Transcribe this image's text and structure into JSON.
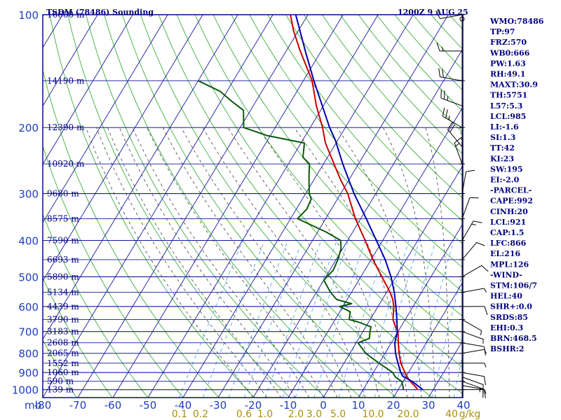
{
  "header": {
    "left_title": "TSDM (78486) Sounding",
    "right_title": "1200Z  9 AUG 25"
  },
  "colors": {
    "frame": "#0a0a8c",
    "isobar": "#1818a0",
    "isotherm": "#1818a0",
    "dry_adiabat": "#26a626",
    "moist_adiabat": "#444444",
    "mixing_ratio": "#3aa0e0",
    "temperature": "#cc0000",
    "dewpoint": "#0a5a0a",
    "parcel": "#0000b0",
    "axis_text": "#1c3fbf",
    "index_text": "#000080",
    "w_text": "#a8900a",
    "wind": "#000000"
  },
  "chart_data": {
    "type": "skew-t",
    "pressure_axis_label": "mb",
    "pressure_ticks": [
      100,
      200,
      300,
      400,
      500,
      600,
      700,
      800,
      900,
      1000
    ],
    "temperature_axis_unit": "",
    "temperature_ticks": [
      -80,
      -70,
      -60,
      -50,
      -40,
      -30,
      -20,
      -10,
      0,
      10,
      20,
      30,
      40
    ],
    "temperature_range": [
      -80,
      40
    ],
    "pressure_range": [
      100,
      1050
    ],
    "mixing_ratio_axis_label": "g/kg",
    "mixing_ratio_ticks": [
      "0.1",
      "0.2",
      "0.6",
      "1.0",
      "2.0",
      "3.0",
      "5.0",
      "10.0",
      "20.0",
      "40"
    ],
    "height_labels": [
      {
        "p": 100,
        "text": "16600 m"
      },
      {
        "p": 150,
        "text": "14190 m"
      },
      {
        "p": 200,
        "text": "12390 m"
      },
      {
        "p": 250,
        "text": "10920 m"
      },
      {
        "p": 300,
        "text": "9680 m"
      },
      {
        "p": 350,
        "text": "8575 m"
      },
      {
        "p": 400,
        "text": "7590 m"
      },
      {
        "p": 450,
        "text": "6693 m"
      },
      {
        "p": 500,
        "text": "5890 m"
      },
      {
        "p": 550,
        "text": "5134 m"
      },
      {
        "p": 600,
        "text": "4439 m"
      },
      {
        "p": 650,
        "text": "3790 m"
      },
      {
        "p": 700,
        "text": "3183 m"
      },
      {
        "p": 750,
        "text": "2608 m"
      },
      {
        "p": 800,
        "text": "2065 m"
      },
      {
        "p": 850,
        "text": "1552 m"
      },
      {
        "p": 900,
        "text": "1060 m"
      },
      {
        "p": 950,
        "text": "590 m"
      },
      {
        "p": 1000,
        "text": "139 m"
      }
    ],
    "series": [
      {
        "id": "temperature",
        "points": [
          [
            1000,
            25.5
          ],
          [
            990,
            25.0
          ],
          [
            950,
            22.0
          ],
          [
            925,
            20.4
          ],
          [
            900,
            19.0
          ],
          [
            850,
            16.2
          ],
          [
            800,
            14.0
          ],
          [
            750,
            12.0
          ],
          [
            700,
            10.0
          ],
          [
            680,
            8.5
          ],
          [
            650,
            6.5
          ],
          [
            600,
            4.5
          ],
          [
            575,
            3.0
          ],
          [
            550,
            1.0
          ],
          [
            500,
            -4.0
          ],
          [
            450,
            -9.5
          ],
          [
            400,
            -15.0
          ],
          [
            350,
            -21.5
          ],
          [
            300,
            -28.0
          ],
          [
            275,
            -32.5
          ],
          [
            250,
            -37.0
          ],
          [
            220,
            -43.0
          ],
          [
            200,
            -46.5
          ],
          [
            175,
            -52.0
          ],
          [
            150,
            -57.5
          ],
          [
            125,
            -66.0
          ],
          [
            110,
            -71.5
          ],
          [
            100,
            -75.0
          ]
        ]
      },
      {
        "id": "dewpoint",
        "points": [
          [
            1000,
            21.5
          ],
          [
            985,
            21.0
          ],
          [
            960,
            20.0
          ],
          [
            950,
            19.5
          ],
          [
            925,
            17.0
          ],
          [
            900,
            15.5
          ],
          [
            850,
            10.0
          ],
          [
            800,
            4.5
          ],
          [
            750,
            0.5
          ],
          [
            730,
            3.0
          ],
          [
            700,
            2.0
          ],
          [
            680,
            1.5
          ],
          [
            660,
            -3.0
          ],
          [
            650,
            -6.0
          ],
          [
            620,
            -7.0
          ],
          [
            600,
            -11.0
          ],
          [
            590,
            -8.0
          ],
          [
            575,
            -13.0
          ],
          [
            550,
            -16.0
          ],
          [
            520,
            -19.0
          ],
          [
            510,
            -20.0
          ],
          [
            480,
            -19.0
          ],
          [
            450,
            -19.5
          ],
          [
            420,
            -20.5
          ],
          [
            400,
            -22.0
          ],
          [
            380,
            -27.5
          ],
          [
            350,
            -38.0
          ],
          [
            330,
            -37.0
          ],
          [
            310,
            -37.5
          ],
          [
            300,
            -39.0
          ],
          [
            270,
            -42.0
          ],
          [
            250,
            -44.0
          ],
          [
            240,
            -47.0
          ],
          [
            220,
            -49.0
          ],
          [
            210,
            -61.0
          ],
          [
            200,
            -69.0
          ],
          [
            180,
            -72.0
          ],
          [
            170,
            -77.0
          ],
          [
            160,
            -82.0
          ],
          [
            150,
            -90.0
          ]
        ]
      },
      {
        "id": "parcel",
        "points": [
          [
            1000,
            27.0
          ],
          [
            950,
            22.5
          ],
          [
            921,
            19.0
          ],
          [
            900,
            17.8
          ],
          [
            850,
            15.4
          ],
          [
            800,
            13.0
          ],
          [
            750,
            11.0
          ],
          [
            700,
            9.8
          ],
          [
            650,
            7.6
          ],
          [
            600,
            5.1
          ],
          [
            550,
            2.2
          ],
          [
            500,
            -1.4
          ],
          [
            450,
            -6.0
          ],
          [
            400,
            -11.8
          ],
          [
            350,
            -18.4
          ],
          [
            300,
            -26.2
          ],
          [
            250,
            -34.5
          ],
          [
            216,
            -40.7
          ],
          [
            200,
            -44.5
          ],
          [
            150,
            -57.0
          ],
          [
            126,
            -64.2
          ],
          [
            100,
            -73.5
          ]
        ]
      }
    ]
  },
  "indices": [
    "WMO:78486",
    "TP:97",
    "FRZ:570",
    "WB0:666",
    "PW:1.63",
    "RH:49.1",
    "MAXT:30.9",
    "TH:5751",
    "L57:5.3",
    "LCL:985",
    "LI:-1.6",
    "SI:1.3",
    "TT:42",
    "KI:23",
    "SW:195",
    "EI:-2.0",
    "-PARCEL-",
    "CAPE:992",
    "CINH:20",
    "LCL:921",
    "CAP:1.5",
    "LFC:866",
    "EL:216",
    "MPL:126",
    "-WIND-",
    "STM:106/7",
    "HEL:40",
    "SHR+:0.0",
    "SRDS:85",
    "EHI:0.3",
    "BRN:468.5",
    "BSHR:2"
  ],
  "winds": [
    {
      "p": 1000,
      "dir": 90,
      "spd": 5
    },
    {
      "p": 975,
      "dir": 100,
      "spd": 10
    },
    {
      "p": 950,
      "dir": 110,
      "spd": 15
    },
    {
      "p": 925,
      "dir": 110,
      "spd": 10
    },
    {
      "p": 900,
      "dir": 100,
      "spd": 10
    },
    {
      "p": 850,
      "dir": 90,
      "spd": 5
    },
    {
      "p": 800,
      "dir": 80,
      "spd": 5
    },
    {
      "p": 750,
      "dir": 100,
      "spd": 10
    },
    {
      "p": 700,
      "dir": 110,
      "spd": 5
    },
    {
      "p": 650,
      "dir": 120,
      "spd": 5
    },
    {
      "p": 600,
      "dir": 90,
      "spd": 10
    },
    {
      "p": 550,
      "dir": 80,
      "spd": 5
    },
    {
      "p": 500,
      "dir": 60,
      "spd": 10
    },
    {
      "p": 450,
      "dir": 40,
      "spd": 10
    },
    {
      "p": 400,
      "dir": 30,
      "spd": 15
    },
    {
      "p": 350,
      "dir": 20,
      "spd": 10
    },
    {
      "p": 300,
      "dir": 10,
      "spd": 10
    },
    {
      "p": 250,
      "dir": 340,
      "spd": 15
    },
    {
      "p": 225,
      "dir": 320,
      "spd": 20
    },
    {
      "p": 200,
      "dir": 300,
      "spd": 25
    },
    {
      "p": 175,
      "dir": 290,
      "spd": 25
    },
    {
      "p": 150,
      "dir": 280,
      "spd": 20
    },
    {
      "p": 125,
      "dir": 270,
      "spd": 15
    },
    {
      "p": 100,
      "dir": 260,
      "spd": 10
    }
  ]
}
